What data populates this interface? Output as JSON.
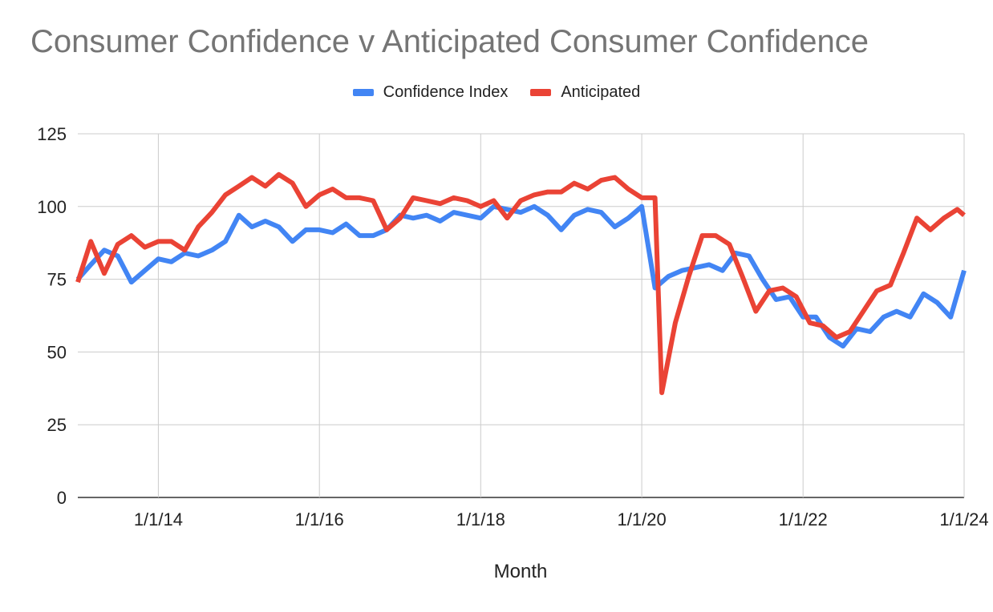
{
  "chart_data": {
    "type": "line",
    "title": "Consumer Confidence v Anticipated Consumer Confidence",
    "xlabel": "Month",
    "ylabel": "",
    "ylim": [
      0,
      125
    ],
    "yticks": [
      "0",
      "25",
      "50",
      "75",
      "100",
      "125"
    ],
    "xlim": [
      "2013-01-01",
      "2024-01-01"
    ],
    "xticks": [
      {
        "date": "2014-01-01",
        "label": "1/1/14"
      },
      {
        "date": "2016-01-01",
        "label": "1/1/16"
      },
      {
        "date": "2018-01-01",
        "label": "1/1/18"
      },
      {
        "date": "2020-01-01",
        "label": "1/1/20"
      },
      {
        "date": "2022-01-01",
        "label": "1/1/22"
      },
      {
        "date": "2024-01-01",
        "label": "1/1/24"
      }
    ],
    "grid": true,
    "legend_position": "top",
    "series": [
      {
        "name": "Confidence Index",
        "color": "#4285f4",
        "x": [
          "2013-01-01",
          "2013-03-01",
          "2013-05-01",
          "2013-07-01",
          "2013-09-01",
          "2013-11-01",
          "2014-01-01",
          "2014-03-01",
          "2014-05-01",
          "2014-07-01",
          "2014-09-01",
          "2014-11-01",
          "2015-01-01",
          "2015-03-01",
          "2015-05-01",
          "2015-07-01",
          "2015-09-01",
          "2015-11-01",
          "2016-01-01",
          "2016-03-01",
          "2016-05-01",
          "2016-07-01",
          "2016-09-01",
          "2016-11-01",
          "2017-01-01",
          "2017-03-01",
          "2017-05-01",
          "2017-07-01",
          "2017-09-01",
          "2017-11-01",
          "2018-01-01",
          "2018-03-01",
          "2018-05-01",
          "2018-07-01",
          "2018-09-01",
          "2018-11-01",
          "2019-01-01",
          "2019-03-01",
          "2019-05-01",
          "2019-07-01",
          "2019-09-01",
          "2019-11-01",
          "2020-01-01",
          "2020-03-01",
          "2020-05-01",
          "2020-07-01",
          "2020-09-01",
          "2020-11-01",
          "2021-01-01",
          "2021-03-01",
          "2021-05-01",
          "2021-07-01",
          "2021-09-01",
          "2021-11-01",
          "2022-01-01",
          "2022-03-01",
          "2022-05-01",
          "2022-07-01",
          "2022-09-01",
          "2022-11-01",
          "2023-01-01",
          "2023-03-01",
          "2023-05-01",
          "2023-07-01",
          "2023-09-01",
          "2023-11-01",
          "2024-01-01"
        ],
        "values": [
          75,
          80,
          85,
          83,
          74,
          78,
          82,
          81,
          84,
          83,
          85,
          88,
          97,
          93,
          95,
          93,
          88,
          92,
          92,
          91,
          94,
          90,
          90,
          92,
          97,
          96,
          97,
          95,
          98,
          97,
          96,
          100,
          99,
          98,
          100,
          97,
          92,
          97,
          99,
          98,
          93,
          96,
          100,
          72,
          76,
          78,
          79,
          80,
          78,
          84,
          83,
          75,
          68,
          69,
          62,
          62,
          55,
          52,
          58,
          57,
          62,
          64,
          62,
          70,
          67,
          62,
          78
        ]
      },
      {
        "name": "Anticipated",
        "color": "#ea4335",
        "x": [
          "2013-01-01",
          "2013-03-01",
          "2013-05-01",
          "2013-07-01",
          "2013-09-01",
          "2013-11-01",
          "2014-01-01",
          "2014-03-01",
          "2014-05-01",
          "2014-07-01",
          "2014-09-01",
          "2014-11-01",
          "2015-01-01",
          "2015-03-01",
          "2015-05-01",
          "2015-07-01",
          "2015-09-01",
          "2015-11-01",
          "2016-01-01",
          "2016-03-01",
          "2016-05-01",
          "2016-07-01",
          "2016-09-01",
          "2016-11-01",
          "2017-01-01",
          "2017-03-01",
          "2017-05-01",
          "2017-07-01",
          "2017-09-01",
          "2017-11-01",
          "2018-01-01",
          "2018-03-01",
          "2018-05-01",
          "2018-07-01",
          "2018-09-01",
          "2018-11-01",
          "2019-01-01",
          "2019-03-01",
          "2019-05-01",
          "2019-07-01",
          "2019-09-01",
          "2019-11-01",
          "2020-01-01",
          "2020-03-01",
          "2020-04-01",
          "2020-06-01",
          "2020-08-01",
          "2020-10-01",
          "2020-12-01",
          "2021-02-01",
          "2021-04-01",
          "2021-06-01",
          "2021-08-01",
          "2021-10-01",
          "2021-12-01",
          "2022-02-01",
          "2022-04-01",
          "2022-06-01",
          "2022-08-01",
          "2022-10-01",
          "2022-12-01",
          "2023-02-01",
          "2023-04-01",
          "2023-06-01",
          "2023-08-01",
          "2023-10-01",
          "2023-12-01",
          "2024-01-01"
        ],
        "values": [
          74,
          88,
          77,
          87,
          90,
          86,
          88,
          88,
          85,
          93,
          98,
          104,
          107,
          110,
          107,
          111,
          108,
          100,
          104,
          106,
          103,
          103,
          102,
          92,
          96,
          103,
          102,
          101,
          103,
          102,
          100,
          102,
          96,
          102,
          104,
          105,
          105,
          108,
          106,
          109,
          110,
          106,
          103,
          103,
          36,
          60,
          76,
          90,
          90,
          87,
          76,
          64,
          71,
          72,
          69,
          60,
          59,
          55,
          57,
          64,
          71,
          73,
          84,
          96,
          92,
          96,
          99,
          97
        ]
      }
    ]
  }
}
